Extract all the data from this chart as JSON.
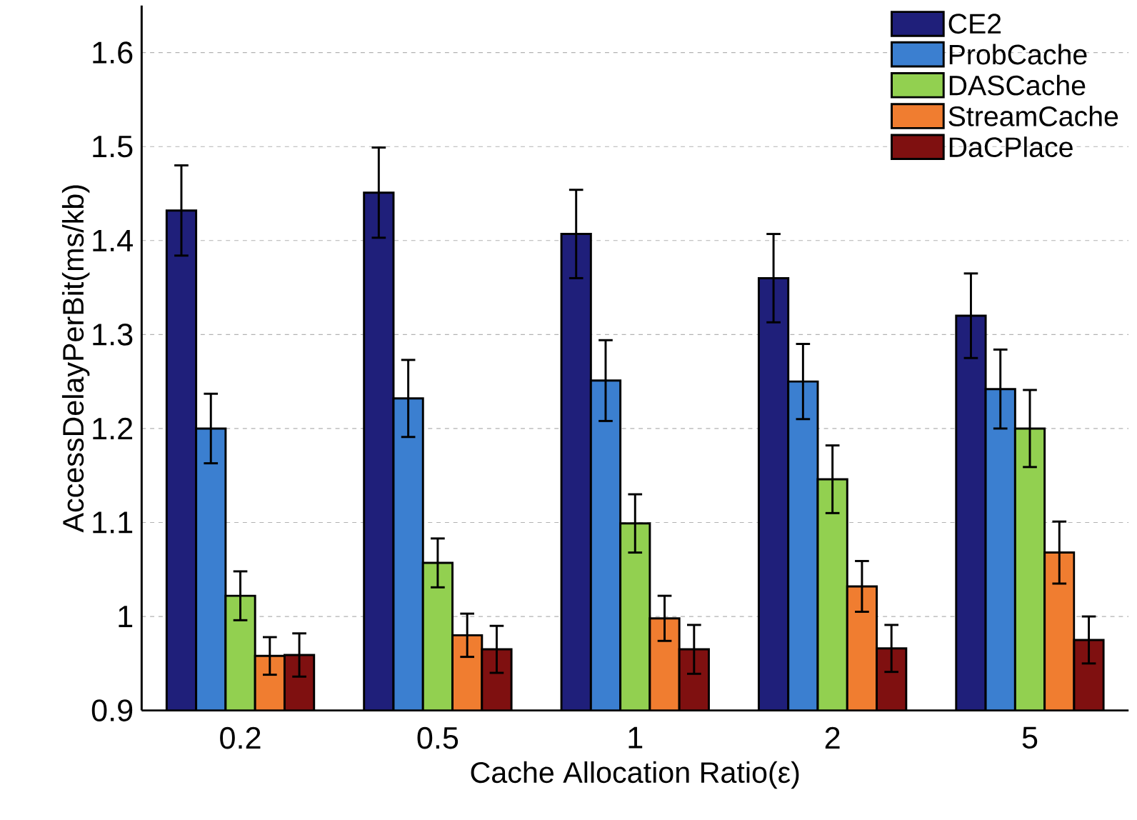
{
  "chart_data": {
    "type": "bar",
    "xlabel": "Cache Allocation Ratio(ε)",
    "ylabel": "AccessDelayPerBit(ms/kb)",
    "categories": [
      "0.2",
      "0.5",
      "1",
      "2",
      "5"
    ],
    "series": [
      {
        "name": "CE2",
        "color": "#1f1f7a",
        "values": [
          1.432,
          1.451,
          1.407,
          1.36,
          1.32
        ],
        "errors": [
          0.048,
          0.048,
          0.047,
          0.047,
          0.045
        ]
      },
      {
        "name": "ProbCache",
        "color": "#3b7fd0",
        "values": [
          1.2,
          1.232,
          1.251,
          1.25,
          1.242
        ],
        "errors": [
          0.037,
          0.041,
          0.043,
          0.04,
          0.042
        ]
      },
      {
        "name": "DASCache",
        "color": "#92d050",
        "values": [
          1.022,
          1.057,
          1.099,
          1.146,
          1.2
        ],
        "errors": [
          0.026,
          0.026,
          0.031,
          0.036,
          0.041
        ]
      },
      {
        "name": "StreamCache",
        "color": "#f07d30",
        "values": [
          0.958,
          0.98,
          0.998,
          1.032,
          1.068
        ],
        "errors": [
          0.02,
          0.023,
          0.024,
          0.027,
          0.033
        ]
      },
      {
        "name": "DaCPlace",
        "color": "#7f1010",
        "values": [
          0.959,
          0.965,
          0.965,
          0.966,
          0.975
        ],
        "errors": [
          0.023,
          0.025,
          0.026,
          0.025,
          0.025
        ]
      }
    ],
    "ylim": [
      0.9,
      1.65
    ],
    "yticks": [
      0.9,
      1,
      1.1,
      1.2,
      1.3,
      1.4,
      1.5,
      1.6
    ],
    "grid": "y",
    "legend": "top right"
  }
}
